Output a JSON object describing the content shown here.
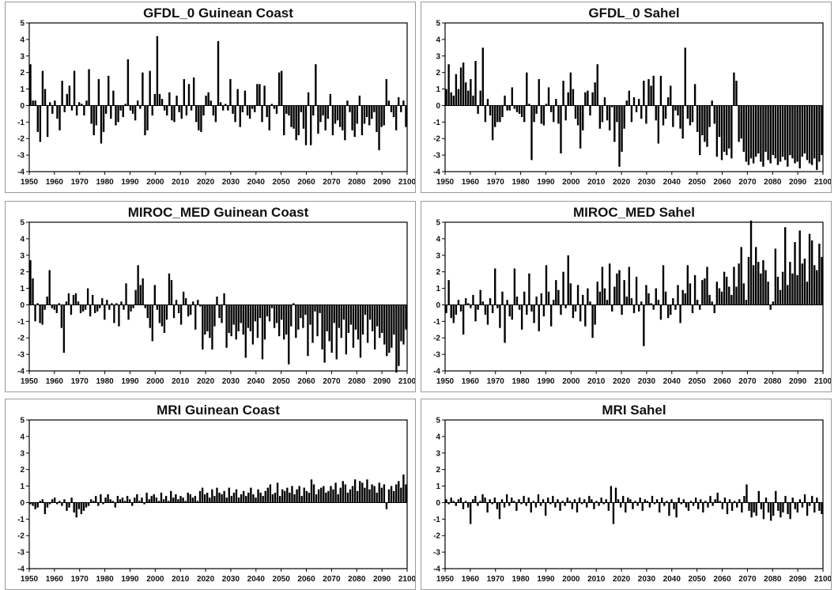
{
  "chart_data": [
    {
      "type": "bar",
      "title": "GFDL_0 Guinean Coast",
      "xlabel": "",
      "ylabel": "",
      "xlim": [
        1950,
        2100
      ],
      "ylim": [
        -4,
        5
      ],
      "yticks": [
        -4,
        -3,
        -2,
        -1,
        0,
        1,
        2,
        3,
        4,
        5
      ],
      "xticks": [
        1950,
        1960,
        1970,
        1980,
        1990,
        2000,
        2010,
        2020,
        2030,
        2040,
        2050,
        2060,
        2070,
        2080,
        2090,
        2100
      ],
      "grid": false,
      "x_start": 1950,
      "values": [
        2.5,
        0.3,
        0.3,
        -1.6,
        -2.2,
        2.1,
        1.0,
        -1.9,
        0.2,
        -0.5,
        0.3,
        -0.8,
        -1.5,
        1.5,
        -0.4,
        0.7,
        1.2,
        -0.3,
        2.1,
        -0.6,
        0.2,
        0.1,
        -0.6,
        0.3,
        2.2,
        -1.1,
        -1.8,
        -1.2,
        1.6,
        -2.3,
        -1.6,
        -0.5,
        1.8,
        -0.8,
        0.9,
        -1.2,
        -1.0,
        -0.3,
        -0.7,
        0.1,
        2.8,
        -0.3,
        -0.5,
        -0.9,
        0.3,
        -0.2,
        2.0,
        -1.8,
        -1.5,
        2.1,
        -0.6,
        0.7,
        4.2,
        0.7,
        0.4,
        -0.3,
        -0.6,
        0.8,
        -0.9,
        -1.0,
        0.6,
        -0.4,
        -0.8,
        1.6,
        -0.6,
        1.3,
        -0.3,
        1.7,
        -1.0,
        -1.5,
        -1.6,
        -0.6,
        0.6,
        0.8,
        0.3,
        -0.6,
        -1.0,
        3.9,
        0.2,
        -0.3,
        0.1,
        -0.3,
        1.6,
        -0.5,
        -1.0,
        1.0,
        -1.3,
        -0.4,
        0.9,
        -0.6,
        -0.8,
        -0.2,
        -0.4,
        1.3,
        1.3,
        -1.0,
        1.2,
        -0.7,
        -1.5,
        0.1,
        -0.2,
        -0.5,
        2.0,
        2.1,
        -1.8,
        -0.5,
        -0.6,
        -1.3,
        -1.4,
        -2.1,
        -1.8,
        -0.4,
        -1.4,
        -2.4,
        0.8,
        -2.4,
        -0.6,
        2.5,
        -1.7,
        -1.0,
        -0.6,
        -1.5,
        -0.8,
        0.7,
        -1.8,
        -1.1,
        -0.9,
        -1.3,
        -1.5,
        -2.1,
        0.3,
        -0.4,
        -1.5,
        -1.9,
        -1.1,
        0.6,
        -1.8,
        -1.1,
        -0.7,
        -1.2,
        -0.8,
        -0.4,
        -1.6,
        -2.7,
        -1.3,
        -1.2,
        1.6,
        0.3,
        -0.4,
        -0.7,
        -1.5,
        0.5,
        -0.4,
        0.3,
        -1.3
      ]
    },
    {
      "type": "bar",
      "title": "GFDL_0 Sahel",
      "xlabel": "",
      "ylabel": "",
      "xlim": [
        1950,
        2100
      ],
      "ylim": [
        -4,
        5
      ],
      "yticks": [
        -4,
        -3,
        -2,
        -1,
        0,
        1,
        2,
        3,
        4,
        5
      ],
      "xticks": [
        1950,
        1960,
        1970,
        1980,
        1990,
        2000,
        2010,
        2020,
        2030,
        2040,
        2050,
        2060,
        2070,
        2080,
        2090,
        2100
      ],
      "grid": false,
      "x_start": 1950,
      "values": [
        1.0,
        2.5,
        0.8,
        0.6,
        1.9,
        1.0,
        2.3,
        2.6,
        1.4,
        0.9,
        1.6,
        0.6,
        2.7,
        -0.5,
        0.9,
        3.5,
        -1.0,
        0.4,
        -0.6,
        -2.1,
        -1.3,
        -1.0,
        -1.0,
        -0.7,
        0.6,
        -0.3,
        -0.3,
        1.1,
        -0.2,
        -0.4,
        -0.5,
        -0.7,
        -1.0,
        2.0,
        0.1,
        -3.3,
        -1.0,
        -0.5,
        1.6,
        -1.1,
        -1.2,
        0.1,
        1.1,
        -0.4,
        -1.0,
        0.4,
        -1.1,
        -2.9,
        1.5,
        -0.9,
        0.8,
        2.0,
        1.0,
        -0.8,
        -1.2,
        -2.6,
        -1.5,
        0.8,
        0.9,
        -0.6,
        0.8,
        1.4,
        2.5,
        -1.4,
        -1.0,
        0.5,
        -0.9,
        -1.5,
        -0.1,
        -2.2,
        -1.0,
        -3.7,
        -2.8,
        -1.4,
        0.3,
        0.9,
        -1.0,
        0.5,
        -0.4,
        0.4,
        -0.8,
        1.5,
        -1.1,
        1.6,
        1.2,
        1.8,
        -0.9,
        -2.3,
        1.8,
        -1.2,
        -0.8,
        0.5,
        1.2,
        -1.3,
        -0.3,
        -0.6,
        -1.4,
        -2.0,
        3.5,
        -0.8,
        -1.2,
        -1.0,
        1.3,
        -1.6,
        -3.0,
        -1.8,
        -2.2,
        -2.5,
        -1.3,
        0.3,
        -1.1,
        -3.1,
        -1.9,
        -3.3,
        -2.8,
        -3.0,
        -2.6,
        -3.2,
        2.0,
        1.5,
        -2.2,
        -2.0,
        -2.8,
        -3.4,
        -3.6,
        -3.2,
        -3.5,
        -3.1,
        -2.9,
        -3.4,
        -3.7,
        -2.8,
        -3.3,
        -3.5,
        -3.0,
        -3.2,
        -3.6,
        -3.4,
        -3.1,
        -3.3,
        -3.7,
        -3.0,
        -3.2,
        -3.5,
        -3.4,
        -3.8,
        -3.1,
        -2.9,
        -3.3,
        -3.5,
        -3.6,
        -3.2,
        -3.9,
        -3.4,
        -3.0
      ]
    },
    {
      "type": "bar",
      "title": "MIROC_MED Guinean Coast",
      "xlabel": "",
      "ylabel": "",
      "xlim": [
        1950,
        2100
      ],
      "ylim": [
        -4,
        5
      ],
      "yticks": [
        -4,
        -3,
        -2,
        -1,
        0,
        1,
        2,
        3,
        4,
        5
      ],
      "xticks": [
        1950,
        1960,
        1970,
        1980,
        1990,
        2000,
        2010,
        2020,
        2030,
        2040,
        2050,
        2060,
        2070,
        2080,
        2090,
        2100
      ],
      "grid": false,
      "x_start": 1950,
      "values": [
        2.7,
        1.6,
        -1.0,
        0.1,
        -1.1,
        -1.2,
        -0.3,
        0.5,
        2.1,
        -0.2,
        -0.3,
        -0.5,
        0.1,
        -1.4,
        -2.9,
        0.2,
        0.7,
        -0.6,
        0.6,
        0.7,
        0.2,
        -0.5,
        -0.4,
        -0.3,
        1.0,
        -0.7,
        0.6,
        -0.5,
        -0.4,
        -0.2,
        0.4,
        -0.9,
        0.3,
        -0.3,
        0.1,
        -1.1,
        0.1,
        -1.3,
        0.2,
        -0.3,
        1.3,
        -0.9,
        -0.4,
        -0.2,
        0.9,
        2.4,
        1.2,
        1.6,
        -0.2,
        -0.8,
        -1.4,
        -2.2,
        1.2,
        -0.3,
        -1.1,
        -1.3,
        -1.7,
        -0.9,
        1.9,
        1.5,
        -0.8,
        0.3,
        -0.5,
        -1.2,
        0.8,
        0.4,
        -0.7,
        -0.6,
        0.2,
        -1.5,
        0.3,
        -0.1,
        -2.7,
        -1.8,
        -1.6,
        -2.0,
        -2.7,
        -1.3,
        0.5,
        -0.8,
        -1.1,
        0.7,
        -2.6,
        -1.7,
        -1.9,
        -1.2,
        -2.1,
        -1.6,
        -1.1,
        -1.8,
        -3.2,
        -1.4,
        -1.6,
        -2.4,
        -1.0,
        -2.0,
        -0.8,
        -3.3,
        -2.1,
        -0.7,
        -1.0,
        -0.2,
        -1.4,
        -1.1,
        -1.9,
        -0.9,
        -2.1,
        -1.8,
        -3.6,
        -1.3,
        0.1,
        -2.0,
        -1.5,
        -0.8,
        -1.4,
        -0.6,
        -3.1,
        -1.2,
        -2.3,
        -0.4,
        -1.9,
        -0.5,
        -2.7,
        -3.5,
        -1.6,
        -2.2,
        -2.9,
        -1.1,
        -3.3,
        -1.4,
        -2.0,
        -0.9,
        -3.0,
        -1.7,
        -1.2,
        -2.6,
        -1.5,
        -2.1,
        -3.2,
        -1.8,
        -0.6,
        -2.3,
        -0.9,
        -1.6,
        -2.7,
        -1.3,
        -2.0,
        -1.7,
        -2.4,
        -3.1,
        -2.9,
        -2.6,
        -1.8,
        -4.1,
        -3.7,
        -2.2,
        -2.4,
        -1.5
      ]
    },
    {
      "type": "bar",
      "title": "MIROC_MED Sahel",
      "xlabel": "",
      "ylabel": "",
      "xlim": [
        1950,
        2100
      ],
      "ylim": [
        -4,
        5
      ],
      "yticks": [
        -4,
        -3,
        -2,
        -1,
        0,
        1,
        2,
        3,
        4,
        5
      ],
      "xticks": [
        1950,
        1960,
        1970,
        1980,
        1990,
        2000,
        2010,
        2020,
        2030,
        2040,
        2050,
        2060,
        2070,
        2080,
        2090,
        2100
      ],
      "grid": false,
      "x_start": 1950,
      "values": [
        -0.5,
        1.5,
        -0.8,
        -1.1,
        -0.6,
        0.3,
        -0.4,
        -1.8,
        0.4,
        0.1,
        -0.2,
        0.6,
        -1.0,
        -0.3,
        0.9,
        0.2,
        -0.6,
        -1.2,
        0.4,
        -0.5,
        2.2,
        -0.2,
        -1.4,
        0.8,
        -2.3,
        0.3,
        -0.7,
        -0.9,
        2.2,
        0.5,
        -0.3,
        -1.5,
        0.8,
        -0.6,
        1.9,
        -0.4,
        -1.1,
        0.5,
        -1.6,
        0.7,
        -0.7,
        2.4,
        0.8,
        -1.3,
        0.3,
        1.5,
        0.9,
        -0.6,
        2.0,
        -0.2,
        3.0,
        1.3,
        -0.8,
        -0.4,
        1.2,
        -1.0,
        0.6,
        -1.3,
        1.0,
        0.2,
        -2.0,
        -1.2,
        1.4,
        0.8,
        2.3,
        1.0,
        0.3,
        2.5,
        -0.4,
        1.1,
        1.9,
        2.1,
        -0.6,
        1.5,
        0.5,
        2.3,
        0.4,
        -0.5,
        1.7,
        -0.4,
        0.2,
        -2.5,
        1.2,
        0.7,
        0.1,
        -0.3,
        1.0,
        0.3,
        -0.9,
        2.4,
        0.8,
        -0.8,
        -0.6,
        0.4,
        -0.3,
        1.2,
        -1.1,
        0.9,
        0.7,
        2.4,
        1.3,
        -0.5,
        1.8,
        0.3,
        -0.3,
        1.5,
        1.6,
        2.3,
        0.6,
        0.2,
        -0.5,
        1.4,
        1.0,
        0.8,
        2.0,
        1.7,
        1.1,
        0.6,
        2.3,
        1.1,
        2.5,
        3.5,
        1.3,
        0.3,
        2.9,
        5.1,
        2.4,
        3.5,
        2.6,
        1.9,
        2.7,
        2.1,
        1.4,
        -0.3,
        0.2,
        3.4,
        1.7,
        0.9,
        2.0,
        4.7,
        1.2,
        2.6,
        1.9,
        3.8,
        1.8,
        4.5,
        2.5,
        2.8,
        1.4,
        4.3,
        3.9,
        2.4,
        2.1,
        3.7,
        2.9
      ]
    },
    {
      "type": "bar",
      "title": "MRI Guinean Coast",
      "xlabel": "",
      "ylabel": "",
      "xlim": [
        1950,
        2100
      ],
      "ylim": [
        -4,
        5
      ],
      "yticks": [
        -4,
        -3,
        -2,
        -1,
        0,
        1,
        2,
        3,
        4,
        5
      ],
      "xticks": [
        1950,
        1960,
        1970,
        1980,
        1990,
        2000,
        2010,
        2020,
        2030,
        2040,
        2050,
        2060,
        2070,
        2080,
        2090,
        2100
      ],
      "grid": false,
      "x_start": 1950,
      "values": [
        -0.1,
        -0.2,
        -0.4,
        -0.3,
        0.1,
        0.2,
        -0.7,
        -0.3,
        -0.1,
        0.2,
        0.3,
        -0.1,
        0.1,
        -0.2,
        0.2,
        -0.5,
        -0.3,
        0.3,
        -0.6,
        -0.9,
        -0.4,
        -0.7,
        -0.5,
        -0.3,
        -0.2,
        0.2,
        0.1,
        0.4,
        -0.2,
        0.5,
        -0.1,
        0.3,
        0.5,
        0.2,
        0.1,
        -0.3,
        0.4,
        0.2,
        0.3,
        0.1,
        0.4,
        0.2,
        -0.2,
        0.3,
        0.5,
        0.1,
        0.3,
        -0.1,
        0.6,
        0.2,
        0.4,
        0.5,
        0.3,
        0.1,
        0.6,
        0.2,
        0.4,
        0.1,
        0.7,
        0.3,
        0.5,
        0.2,
        0.4,
        0.3,
        0.1,
        0.6,
        0.5,
        0.3,
        0.4,
        0.1,
        0.7,
        0.9,
        0.5,
        0.6,
        0.3,
        0.8,
        0.4,
        0.9,
        0.6,
        0.5,
        0.7,
        0.3,
        0.9,
        0.4,
        0.6,
        0.8,
        0.3,
        0.5,
        0.7,
        0.4,
        0.6,
        0.9,
        0.5,
        0.3,
        0.8,
        0.6,
        0.4,
        0.7,
        0.9,
        1.1,
        0.5,
        0.6,
        1.2,
        0.4,
        0.8,
        0.7,
        0.9,
        0.6,
        1.0,
        0.5,
        0.8,
        1.0,
        0.4,
        0.9,
        0.7,
        0.6,
        1.4,
        1.1,
        0.5,
        0.8,
        0.9,
        1.0,
        0.6,
        0.7,
        1.0,
        0.8,
        1.2,
        0.5,
        0.9,
        1.3,
        1.1,
        0.6,
        0.8,
        1.0,
        1.4,
        0.7,
        1.3,
        1.2,
        0.9,
        1.4,
        0.8,
        1.1,
        1.0,
        0.6,
        1.2,
        0.9,
        1.1,
        -0.4,
        0.8,
        1.0,
        0.7,
        1.1,
        1.3,
        0.9,
        1.7,
        1.1
      ]
    },
    {
      "type": "bar",
      "title": "MRI Sahel",
      "xlabel": "",
      "ylabel": "",
      "xlim": [
        1950,
        2100
      ],
      "ylim": [
        -4,
        5
      ],
      "yticks": [
        -4,
        -3,
        -2,
        -1,
        0,
        1,
        2,
        3,
        4,
        5
      ],
      "xticks": [
        1950,
        1960,
        1970,
        1980,
        1990,
        2000,
        2010,
        2020,
        2030,
        2040,
        2050,
        2060,
        2070,
        2080,
        2090,
        2100
      ],
      "grid": false,
      "x_start": 1950,
      "values": [
        0.2,
        -0.1,
        0.3,
        0.1,
        -0.2,
        0.2,
        0.3,
        -0.4,
        0.1,
        -0.3,
        -1.3,
        0.2,
        0.4,
        -0.2,
        0.1,
        0.5,
        0.3,
        -0.6,
        0.2,
        -0.1,
        0.3,
        -0.4,
        -1.0,
        0.2,
        -0.3,
        0.5,
        -0.2,
        0.3,
        0.1,
        -0.5,
        0.2,
        -0.1,
        0.4,
        -0.2,
        0.3,
        -0.6,
        0.1,
        -0.3,
        0.5,
        -0.2,
        0.2,
        -0.8,
        0.3,
        -0.1,
        0.4,
        -0.3,
        0.2,
        -0.5,
        0.1,
        -0.2,
        0.3,
        0.1,
        -0.4,
        0.2,
        -0.6,
        0.3,
        -0.1,
        0.2,
        -0.3,
        0.4,
        0.2,
        -0.4,
        0.1,
        -0.2,
        0.3,
        -0.1,
        0.2,
        -0.5,
        1.0,
        -1.3,
        0.9,
        0.2,
        -0.3,
        0.4,
        -0.6,
        0.3,
        0.2,
        -0.4,
        0.1,
        -0.2,
        0.3,
        -0.5,
        0.2,
        0.1,
        -0.3,
        0.4,
        -0.1,
        0.2,
        -0.6,
        0.3,
        -0.2,
        0.1,
        -0.8,
        0.2,
        -0.4,
        -0.9,
        0.3,
        -0.1,
        0.2,
        -0.3,
        -0.5,
        0.1,
        -0.2,
        0.3,
        -0.4,
        0.2,
        -0.6,
        0.1,
        -0.3,
        0.4,
        -0.2,
        0.2,
        0.6,
        0.1,
        -0.4,
        0.3,
        -0.7,
        0.2,
        -0.5,
        0.1,
        -0.3,
        0.2,
        -0.6,
        0.4,
        1.1,
        -0.5,
        -0.9,
        -0.6,
        -0.8,
        0.7,
        -0.4,
        -1.0,
        0.3,
        -0.6,
        -1.1,
        -0.8,
        0.7,
        -0.5,
        -0.9,
        -0.6,
        0.4,
        -0.7,
        -1.0,
        0.3,
        -0.4,
        -0.6,
        0.2,
        -0.3,
        0.5,
        -0.8,
        -0.2,
        0.4,
        -0.6,
        0.3,
        -0.5,
        -0.7
      ]
    }
  ]
}
